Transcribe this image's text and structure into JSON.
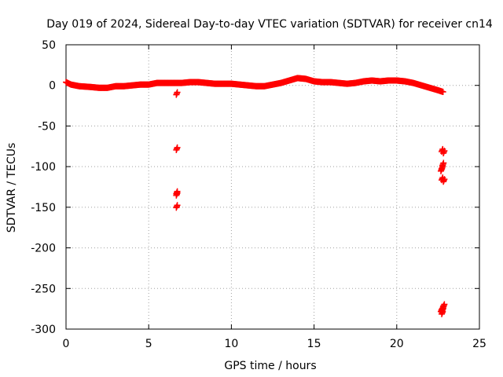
{
  "chart_data": {
    "type": "scatter",
    "title": "Day 019 of 2024, Sidereal Day-to-day VTEC variation (SDTVAR) for receiver cn14",
    "xlabel": "GPS time / hours",
    "ylabel": "SDTVAR / TECUs",
    "xlim": [
      0,
      25
    ],
    "ylim": [
      -300,
      50
    ],
    "xticks": [
      0,
      5,
      10,
      15,
      20,
      25
    ],
    "yticks": [
      50,
      0,
      -50,
      -100,
      -150,
      -200,
      -250,
      -300
    ],
    "grid": true,
    "marker_color": "#ff0000",
    "series": [
      {
        "name": "SDTVAR",
        "trend": [
          [
            0.0,
            4
          ],
          [
            0.3,
            1
          ],
          [
            0.8,
            -1
          ],
          [
            1.5,
            -2
          ],
          [
            2.0,
            -3
          ],
          [
            2.5,
            -3
          ],
          [
            3.0,
            -1
          ],
          [
            3.5,
            -1
          ],
          [
            4.0,
            0
          ],
          [
            4.5,
            1
          ],
          [
            5.0,
            1
          ],
          [
            5.5,
            3
          ],
          [
            6.0,
            3
          ],
          [
            6.5,
            3
          ],
          [
            7.0,
            3
          ],
          [
            7.5,
            4
          ],
          [
            8.0,
            4
          ],
          [
            8.5,
            3
          ],
          [
            9.0,
            2
          ],
          [
            9.5,
            2
          ],
          [
            10.0,
            2
          ],
          [
            10.5,
            1
          ],
          [
            11.0,
            0
          ],
          [
            11.5,
            -1
          ],
          [
            12.0,
            -1
          ],
          [
            12.5,
            1
          ],
          [
            13.0,
            3
          ],
          [
            13.5,
            6
          ],
          [
            14.0,
            9
          ],
          [
            14.5,
            8
          ],
          [
            15.0,
            5
          ],
          [
            15.5,
            4
          ],
          [
            16.0,
            4
          ],
          [
            16.5,
            3
          ],
          [
            17.0,
            2
          ],
          [
            17.5,
            3
          ],
          [
            18.0,
            5
          ],
          [
            18.5,
            6
          ],
          [
            19.0,
            5
          ],
          [
            19.5,
            6
          ],
          [
            20.0,
            6
          ],
          [
            20.5,
            5
          ],
          [
            21.0,
            3
          ],
          [
            21.5,
            0
          ],
          [
            22.0,
            -3
          ],
          [
            22.5,
            -6
          ],
          [
            22.8,
            -8
          ]
        ],
        "outliers": [
          [
            6.7,
            -10
          ],
          [
            6.7,
            -78
          ],
          [
            6.7,
            -132
          ],
          [
            6.7,
            -134
          ],
          [
            6.7,
            -149
          ],
          [
            22.75,
            -80
          ],
          [
            22.85,
            -82
          ],
          [
            22.8,
            -97
          ],
          [
            22.75,
            -101
          ],
          [
            22.7,
            -104
          ],
          [
            22.75,
            -115
          ],
          [
            22.85,
            -117
          ],
          [
            22.7,
            -277
          ],
          [
            22.75,
            -280
          ],
          [
            22.8,
            -273
          ],
          [
            22.85,
            -271
          ],
          [
            22.78,
            -276
          ]
        ]
      }
    ]
  }
}
